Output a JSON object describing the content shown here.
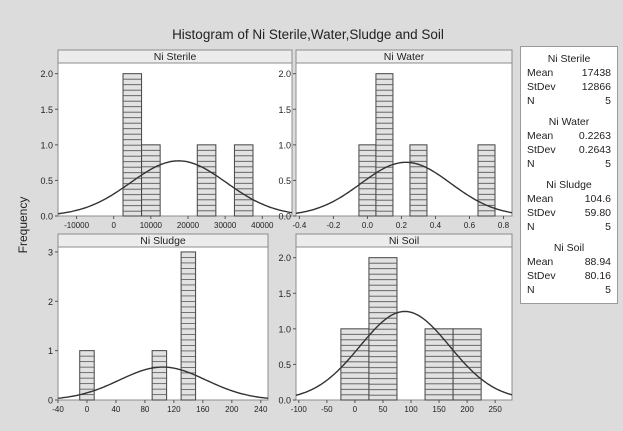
{
  "title": "Histogram of Ni Sterile,Water,Sludge and Soil",
  "ylabel": "Frequency",
  "chart_data": [
    {
      "type": "bar",
      "title": "Ni Sterile",
      "xlim": [
        -15000,
        48000
      ],
      "ylim": [
        0,
        2.15
      ],
      "xticks": [
        -10000,
        0,
        10000,
        20000,
        30000,
        40000
      ],
      "yticks": [
        0.0,
        0.5,
        1.0,
        1.5,
        2.0
      ],
      "ytick_labels": [
        "0.0",
        "0.5",
        "1.0",
        "1.5",
        "2.0"
      ],
      "bins": [
        {
          "x0": 2500,
          "x1": 7500,
          "count": 2
        },
        {
          "x0": 7500,
          "x1": 12500,
          "count": 1
        },
        {
          "x0": 22500,
          "x1": 27500,
          "count": 1
        },
        {
          "x0": 32500,
          "x1": 37500,
          "count": 1
        }
      ],
      "stats": {
        "mean": "17438",
        "stdev": "12866",
        "n": "5"
      }
    },
    {
      "type": "bar",
      "title": "Ni Water",
      "xlim": [
        -0.42,
        0.85
      ],
      "ylim": [
        0,
        2.15
      ],
      "xticks": [
        -0.4,
        -0.2,
        0.0,
        0.2,
        0.4,
        0.6,
        0.8
      ],
      "xtick_labels": [
        "-0.4",
        "-0.2",
        "0.0",
        "0.2",
        "0.4",
        "0.6",
        "0.8"
      ],
      "yticks": [
        0.0,
        0.5,
        1.0,
        1.5,
        2.0
      ],
      "ytick_labels": [
        "0.0",
        "0.5",
        "1.0",
        "1.5",
        "2.0"
      ],
      "bins": [
        {
          "x0": -0.05,
          "x1": 0.05,
          "count": 1
        },
        {
          "x0": 0.05,
          "x1": 0.15,
          "count": 2
        },
        {
          "x0": 0.25,
          "x1": 0.35,
          "count": 1
        },
        {
          "x0": 0.65,
          "x1": 0.75,
          "count": 1
        }
      ],
      "stats": {
        "mean": "0.2263",
        "stdev": "0.2643",
        "n": "5"
      }
    },
    {
      "type": "bar",
      "title": "Ni Sludge",
      "xlim": [
        -40,
        250
      ],
      "ylim": [
        0,
        3.1
      ],
      "xticks": [
        -40,
        0,
        40,
        80,
        120,
        160,
        200,
        240
      ],
      "yticks": [
        0,
        1,
        2,
        3
      ],
      "ytick_labels": [
        "0",
        "1",
        "2",
        "3"
      ],
      "bins": [
        {
          "x0": -10,
          "x1": 10,
          "count": 1
        },
        {
          "x0": 90,
          "x1": 110,
          "count": 1
        },
        {
          "x0": 130,
          "x1": 150,
          "count": 3
        }
      ],
      "stats": {
        "mean": "104.6",
        "stdev": "59.80",
        "n": "5"
      }
    },
    {
      "type": "bar",
      "title": "Ni Soil",
      "xlim": [
        -105,
        280
      ],
      "ylim": [
        0,
        2.15
      ],
      "xticks": [
        -100,
        -50,
        0,
        50,
        100,
        150,
        200,
        250
      ],
      "yticks": [
        0.0,
        0.5,
        1.0,
        1.5,
        2.0
      ],
      "ytick_labels": [
        "0.0",
        "0.5",
        "1.0",
        "1.5",
        "2.0"
      ],
      "bins": [
        {
          "x0": -25,
          "x1": 25,
          "count": 1
        },
        {
          "x0": 25,
          "x1": 75,
          "count": 2
        },
        {
          "x0": 125,
          "x1": 175,
          "count": 1
        },
        {
          "x0": 175,
          "x1": 225,
          "count": 1
        }
      ],
      "stats": {
        "mean": "88.94",
        "stdev": "80.16",
        "n": "5"
      }
    }
  ],
  "legend": {
    "mean_label": "Mean",
    "stdev_label": "StDev",
    "n_label": "N"
  }
}
